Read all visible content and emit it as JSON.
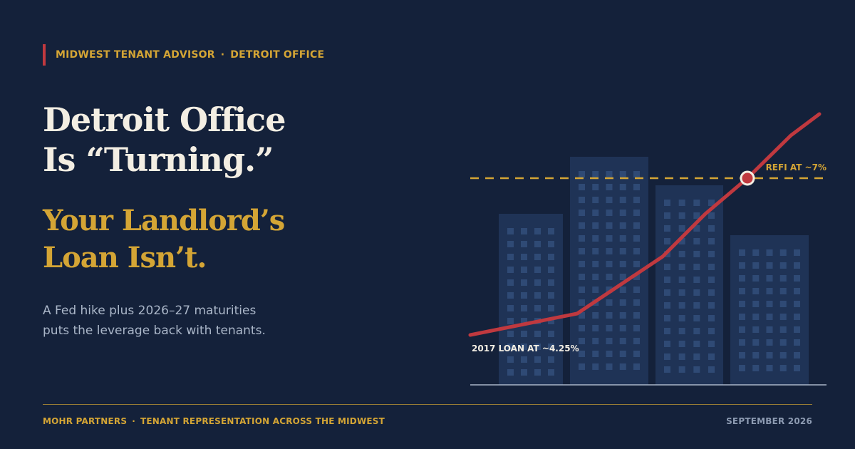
{
  "eyebrow": {
    "brand": "MIDWEST TENANT ADVISOR",
    "separator": "·",
    "market": "DETROIT OFFICE"
  },
  "headline": {
    "line1": "Detroit Office",
    "line2": "Is “Turning.”"
  },
  "subhead": {
    "line1": "Your Landlord’s",
    "line2": "Loan Isn’t."
  },
  "body": {
    "line1": "A Fed hike plus 2026–27 maturities",
    "line2": "puts the leverage back with tenants."
  },
  "illustration": {
    "start_label": "2017 LOAN AT ~4.25%",
    "refi_label": "REFI AT ~7%",
    "colors": {
      "line": "#c0393f",
      "threshold": "#d4a535",
      "buildings": "#1f3356",
      "windows": "#2f4a75",
      "baseline": "#aab6c8"
    }
  },
  "footer": {
    "company": "MOHR PARTNERS",
    "separator": "·",
    "tagline": "TENANT REPRESENTATION ACROSS THE MIDWEST",
    "date": "SEPTEMBER 2026"
  }
}
